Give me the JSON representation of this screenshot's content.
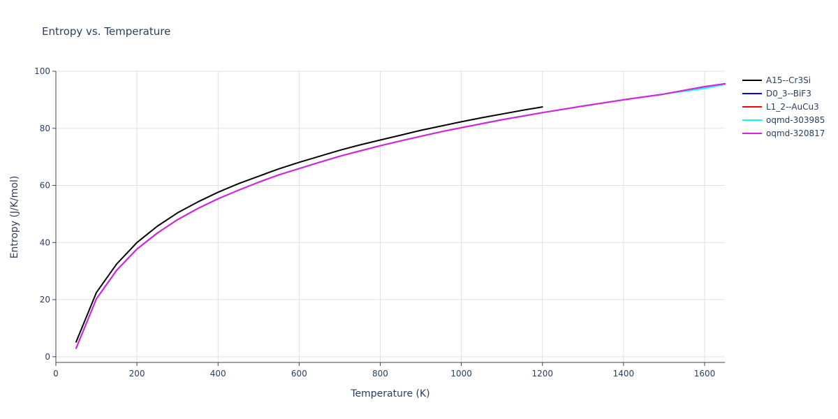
{
  "chart_data": {
    "type": "line",
    "title": "Entropy vs. Temperature",
    "xlabel": "Temperature (K)",
    "ylabel": "Entropy (J/K/mol)",
    "xlim": [
      0,
      1650
    ],
    "ylim": [
      -2,
      100
    ],
    "xticks": [
      0,
      200,
      400,
      600,
      800,
      1000,
      1200,
      1400,
      1600
    ],
    "yticks": [
      0,
      20,
      40,
      60,
      80,
      100
    ],
    "grid": true,
    "legend_position": "top-right",
    "series": [
      {
        "name": "A15--Cr3Si",
        "color": "#000000",
        "x": [
          50,
          100,
          150,
          200,
          250,
          300,
          350,
          400,
          450,
          500,
          550,
          600,
          650,
          700,
          750,
          800,
          850,
          900,
          950,
          1000,
          1050,
          1100,
          1150,
          1200
        ],
        "y": [
          5.2,
          22.5,
          32.5,
          40.0,
          45.7,
          50.4,
          54.2,
          57.6,
          60.6,
          63.2,
          65.8,
          68.1,
          70.2,
          72.3,
          74.2,
          75.9,
          77.6,
          79.3,
          80.8,
          82.3,
          83.7,
          85.0,
          86.3,
          87.5
        ]
      },
      {
        "name": "D0_3--BiF3",
        "color": "#0000ff",
        "x": [
          50,
          100,
          150,
          200,
          250,
          300,
          350,
          400,
          450,
          500,
          550,
          600,
          650,
          700,
          750,
          800,
          850,
          900,
          950,
          1000,
          1100,
          1200,
          1300,
          1400,
          1500,
          1600,
          1650
        ],
        "y": [
          3.0,
          20.3,
          30.3,
          37.7,
          43.3,
          48.0,
          51.9,
          55.3,
          58.3,
          61.1,
          63.7,
          65.9,
          68.1,
          70.2,
          72.1,
          73.9,
          75.6,
          77.2,
          78.8,
          80.2,
          83.0,
          85.5,
          87.8,
          90.0,
          92.0,
          94.6,
          95.6
        ]
      },
      {
        "name": "L1_2--AuCu3",
        "color": "#ff0000",
        "x": [
          50,
          100,
          150,
          200,
          250,
          300,
          350,
          400,
          450,
          500,
          550,
          600,
          650,
          700,
          750,
          800,
          850,
          900,
          950,
          1000,
          1100,
          1200,
          1300,
          1400,
          1500,
          1600,
          1650
        ],
        "y": [
          3.0,
          20.3,
          30.3,
          37.7,
          43.3,
          48.0,
          51.9,
          55.3,
          58.3,
          61.1,
          63.7,
          65.9,
          68.1,
          70.2,
          72.1,
          73.9,
          75.6,
          77.2,
          78.8,
          80.2,
          83.0,
          85.5,
          87.8,
          90.0,
          92.0,
          94.6,
          95.6
        ]
      },
      {
        "name": "oqmd-303985",
        "color": "#00ffff",
        "x": [
          50,
          100,
          150,
          200,
          250,
          300,
          350,
          400,
          450,
          500,
          550,
          600,
          650,
          700,
          750,
          800,
          850,
          900,
          950,
          1000,
          1100,
          1200,
          1300,
          1400,
          1500,
          1600,
          1650
        ],
        "y": [
          3.0,
          20.3,
          30.3,
          37.7,
          43.3,
          48.0,
          51.9,
          55.3,
          58.3,
          61.1,
          63.7,
          65.9,
          68.1,
          70.2,
          72.1,
          73.9,
          75.6,
          77.2,
          78.8,
          80.2,
          83.0,
          85.5,
          87.8,
          90.0,
          92.0,
          94.0,
          95.4
        ]
      },
      {
        "name": "oqmd-320817",
        "color": "#dd22dd",
        "x": [
          50,
          100,
          150,
          200,
          250,
          300,
          350,
          400,
          450,
          500,
          550,
          600,
          650,
          700,
          750,
          800,
          850,
          900,
          950,
          1000,
          1100,
          1200,
          1300,
          1400,
          1500,
          1600,
          1650
        ],
        "y": [
          3.0,
          20.3,
          30.3,
          37.7,
          43.3,
          48.0,
          51.9,
          55.3,
          58.3,
          61.1,
          63.7,
          65.9,
          68.1,
          70.2,
          72.1,
          73.9,
          75.6,
          77.2,
          78.8,
          80.2,
          83.0,
          85.5,
          87.8,
          90.0,
          92.0,
          94.6,
          95.6
        ]
      }
    ]
  }
}
